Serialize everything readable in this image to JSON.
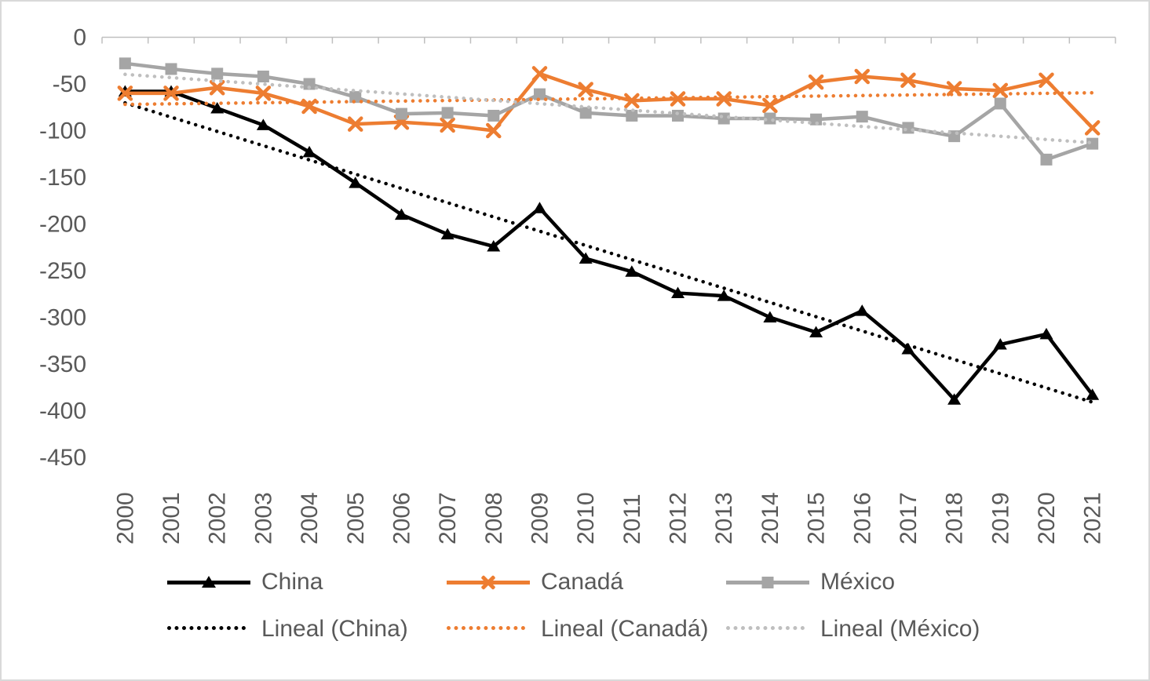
{
  "window": {
    "background": "#ffffff",
    "border_color": "#d9d9d9"
  },
  "chart_data": {
    "type": "line",
    "title": "",
    "xlabel": "",
    "ylabel": "",
    "x": [
      "2000",
      "2001",
      "2002",
      "2003",
      "2004",
      "2005",
      "2006",
      "2007",
      "2008",
      "2009",
      "2010",
      "2011",
      "2012",
      "2013",
      "2014",
      "2015",
      "2016",
      "2017",
      "2018",
      "2019",
      "2020",
      "2021"
    ],
    "series": [
      {
        "name": "China",
        "color": "#000000",
        "marker": "triangle",
        "values": [
          -58,
          -58,
          -76,
          -94,
          -123,
          -156,
          -190,
          -211,
          -224,
          -183,
          -237,
          -251,
          -274,
          -277,
          -300,
          -316,
          -293,
          -334,
          -388,
          -329,
          -318,
          -383
        ]
      },
      {
        "name": "Canadá",
        "color": "#ED7D31",
        "marker": "x",
        "values": [
          -60,
          -60,
          -54,
          -60,
          -74,
          -93,
          -91,
          -94,
          -100,
          -39,
          -56,
          -68,
          -66,
          -66,
          -73,
          -48,
          -42,
          -46,
          -55,
          -57,
          -46,
          -97
        ]
      },
      {
        "name": "México",
        "color": "#A5A5A5",
        "marker": "square",
        "values": [
          -28,
          -34,
          -39,
          -42,
          -50,
          -64,
          -82,
          -81,
          -84,
          -61,
          -81,
          -84,
          -84,
          -87,
          -87,
          -88,
          -85,
          -97,
          -106,
          -71,
          -131,
          -114
        ]
      }
    ],
    "trendlines": [
      {
        "name": "Lineal (China)",
        "for": "China",
        "color": "#000000",
        "style": "dotted"
      },
      {
        "name": "Lineal (Canadá)",
        "for": "Canadá",
        "color": "#ED7D31",
        "style": "dotted"
      },
      {
        "name": "Lineal (México)",
        "for": "México",
        "color": "#BFBFBF",
        "style": "dotted"
      }
    ],
    "y_axis": {
      "min": -450,
      "max": 0,
      "step": 50,
      "tick_labels": [
        "0",
        "-50",
        "-100",
        "-150",
        "-200",
        "-250",
        "-300",
        "-350",
        "-400",
        "-450"
      ]
    },
    "x_axis": {
      "tick_labels_rotation": -90,
      "position": "zero-line-top",
      "labels_position": "low"
    },
    "legend": {
      "position": "bottom",
      "rows": [
        [
          "China",
          "Canadá",
          "México"
        ],
        [
          "Lineal (China)",
          "Lineal (Canadá)",
          "Lineal (México)"
        ]
      ]
    },
    "gridlines": false,
    "axis_color": "#BFBFBF",
    "label_color": "#595959"
  }
}
